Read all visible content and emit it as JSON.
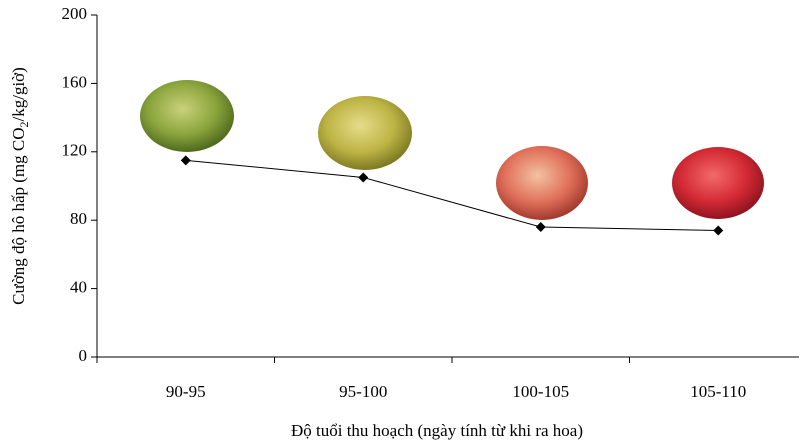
{
  "chart_data": {
    "type": "line",
    "y_label": [
      "Cường độ hô hấp (mg CO",
      "2",
      "/kg/giờ)"
    ],
    "x_label": "Độ tuổi thu hoạch (ngày tính từ khi ra hoa)",
    "categories": [
      "90-95",
      "95-100",
      "100-105",
      "105-110"
    ],
    "values": [
      115,
      105,
      76,
      74
    ],
    "color": "#000000",
    "ylim": [
      0,
      200
    ],
    "yticks": [
      0,
      40,
      80,
      120,
      160,
      200
    ]
  }
}
